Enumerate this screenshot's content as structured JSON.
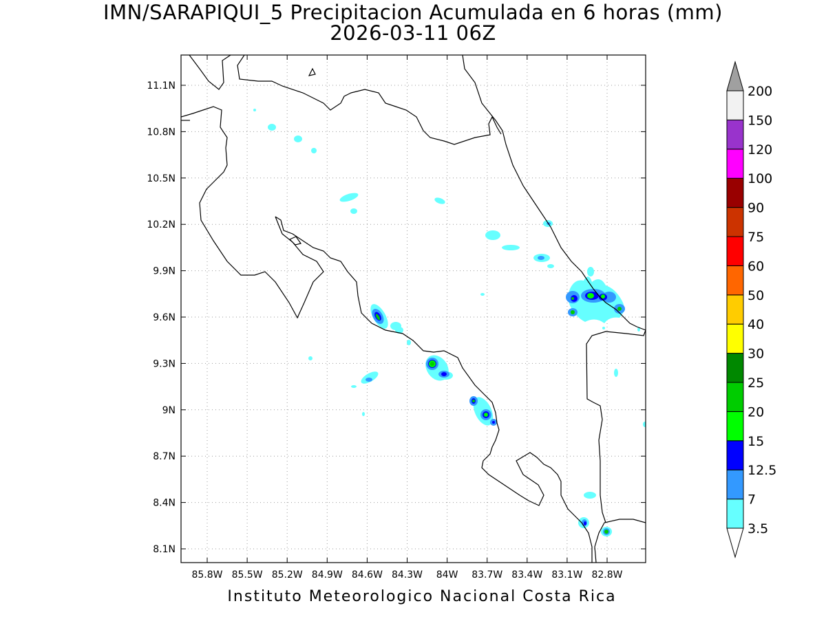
{
  "map": {
    "title": "IMN/SARAPIQUI_5 Precipitacion Acumulada en 6 horas (mm)",
    "valid_time": "2026-03-11 06Z",
    "footer": "Instituto Meteorologico Nacional Costa Rica",
    "lon_labels": [
      "85.8W",
      "85.5W",
      "85.2W",
      "84.9W",
      "84.6W",
      "84.3W",
      "84W",
      "83.7W",
      "83.4W",
      "83.1W",
      "82.8W"
    ],
    "lat_labels": [
      "11.1N",
      "10.8N",
      "10.5N",
      "10.2N",
      "9.9N",
      "9.6N",
      "9.3N",
      "9N",
      "8.7N",
      "8.4N",
      "8.1N"
    ],
    "lon_values": [
      -85.8,
      -85.5,
      -85.2,
      -84.9,
      -84.6,
      -84.3,
      -84.0,
      -83.7,
      -83.4,
      -83.1,
      -82.8
    ],
    "lat_values": [
      11.1,
      10.8,
      10.5,
      10.2,
      9.9,
      9.6,
      9.3,
      9.0,
      8.7,
      8.4,
      8.1
    ],
    "grid": true
  },
  "colorbar": {
    "levels": [
      "3.5",
      "7",
      "12.5",
      "15",
      "20",
      "25",
      "30",
      "40",
      "50",
      "60",
      "75",
      "90",
      "100",
      "120",
      "150",
      "200"
    ],
    "colors": [
      "#66ffff",
      "#3399ff",
      "#0000ff",
      "#00ff00",
      "#00cc00",
      "#008800",
      "#ffff00",
      "#ffcc00",
      "#ff6600",
      "#ff0000",
      "#cc3300",
      "#990000",
      "#ff00ff",
      "#9933cc",
      "#f2f2f2",
      "#a0a0a0"
    ]
  }
}
